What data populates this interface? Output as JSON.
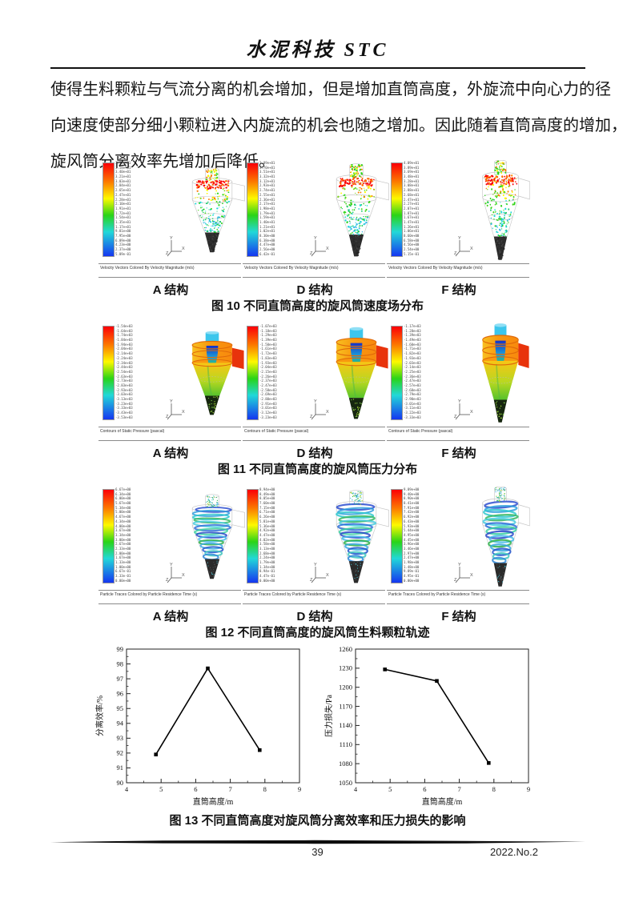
{
  "page": {
    "number": "39",
    "issue": "2022.No.2"
  },
  "header": {
    "title": "水泥科技 STC"
  },
  "body_lines": [
    "使得生料颗粒与气流分离的机会增加，但是增加直筒高度，外旋流中向心力的径",
    "向速度使部分细小颗粒进入内旋流的机会也随之增加。因此随着直筒高度的增加，",
    "旋风筒分离效率先增加后降低。"
  ],
  "triad": {
    "up": "Y",
    "right": "X",
    "depth": "Z"
  },
  "colormap": [
    "#fb0007",
    "#fc7a00",
    "#fdf900",
    "#2ad417",
    "#22d8d8",
    "#1536f0"
  ],
  "figures": [
    {
      "id": "fig10",
      "style": "velocity",
      "panel_caption": "Velocity Vectors Colored By Velocity Magnitude (m/s)",
      "caption": "图 10 不同直筒高度的旋风筒速度场分布",
      "panels": [
        {
          "label": "A 结构",
          "legend": [
            "3.77e+01",
            "3.58e+01",
            "3.40e+01",
            "3.21e+01",
            "3.03e+01",
            "2.84e+01",
            "2.65e+01",
            "2.47e+01",
            "2.28e+01",
            "2.10e+01",
            "1.91e+01",
            "1.72e+01",
            "1.54e+01",
            "1.35e+01",
            "1.17e+01",
            "9.81e+00",
            "7.95e+00",
            "6.09e+00",
            "4.23e+00",
            "2.37e+00",
            "5.09e-01"
          ]
        },
        {
          "label": "D 结构",
          "legend": [
            "3.89e+01",
            "3.70e+01",
            "3.51e+01",
            "3.32e+01",
            "3.12e+01",
            "2.93e+01",
            "2.74e+01",
            "2.55e+01",
            "2.36e+01",
            "2.17e+01",
            "1.98e+01",
            "1.79e+01",
            "1.59e+01",
            "1.40e+01",
            "1.21e+01",
            "1.02e+01",
            "8.30e+00",
            "6.38e+00",
            "4.47e+00",
            "2.56e+00",
            "6.42e-01"
          ]
        },
        {
          "label": "F 结构",
          "legend": [
            "4.09e+01",
            "3.89e+01",
            "3.69e+01",
            "3.48e+01",
            "3.28e+01",
            "3.08e+01",
            "2.88e+01",
            "2.68e+01",
            "2.47e+01",
            "2.27e+01",
            "2.07e+01",
            "1.87e+01",
            "1.67e+01",
            "1.47e+01",
            "1.26e+01",
            "1.06e+01",
            "8.60e+00",
            "6.58e+00",
            "4.56e+00",
            "2.54e+00",
            "5.15e-01"
          ]
        }
      ]
    },
    {
      "id": "fig11",
      "style": "pressure",
      "panel_caption": "Contours of Static Pressure (pascal)",
      "caption": "图 11 不同直筒高度的旋风筒压力分布",
      "panels": [
        {
          "label": "A 结构",
          "legend": [
            "-1.54e+03",
            "-1.64e+03",
            "-1.74e+03",
            "-1.84e+03",
            "-1.94e+03",
            "-2.04e+03",
            "-2.14e+03",
            "-2.24e+03",
            "-2.34e+03",
            "-2.44e+03",
            "-2.54e+03",
            "-2.63e+03",
            "-2.73e+03",
            "-2.83e+03",
            "-2.93e+03",
            "-3.03e+03",
            "-3.13e+03",
            "-3.23e+03",
            "-3.33e+03",
            "-3.43e+03",
            "-3.53e+03"
          ]
        },
        {
          "label": "D 结构",
          "legend": [
            "-1.07e+03",
            "-1.18e+03",
            "-1.29e+03",
            "-1.39e+03",
            "-1.50e+03",
            "-1.61e+03",
            "-1.72e+03",
            "-1.83e+03",
            "-1.93e+03",
            "-2.04e+03",
            "-2.15e+03",
            "-2.26e+03",
            "-2.37e+03",
            "-2.47e+03",
            "-2.58e+03",
            "-2.69e+03",
            "-2.80e+03",
            "-2.91e+03",
            "-3.01e+03",
            "-3.12e+03",
            "-3.23e+03"
          ]
        },
        {
          "label": "F 结构",
          "legend": [
            "-1.17e+03",
            "-1.28e+03",
            "-1.39e+03",
            "-1.49e+03",
            "-1.60e+03",
            "-1.71e+03",
            "-1.82e+03",
            "-1.93e+03",
            "-2.03e+03",
            "-2.14e+03",
            "-2.25e+03",
            "-2.36e+03",
            "-2.47e+03",
            "-2.57e+03",
            "-2.68e+03",
            "-2.79e+03",
            "-2.90e+03",
            "-3.01e+03",
            "-3.11e+03",
            "-3.22e+03",
            "-3.33e+03"
          ]
        }
      ]
    },
    {
      "id": "fig12",
      "style": "particles",
      "panel_caption": "Particle Traces Colored by Particle Residence Time (s)",
      "caption": "图 12 不同直筒高度的旋风筒生料颗粒轨迹",
      "panels": [
        {
          "label": "A 结构",
          "legend": [
            "6.67e+00",
            "6.34e+00",
            "6.00e+00",
            "5.67e+00",
            "5.34e+00",
            "5.00e+00",
            "4.67e+00",
            "4.34e+00",
            "4.00e+00",
            "3.67e+00",
            "3.34e+00",
            "3.00e+00",
            "2.67e+00",
            "2.33e+00",
            "2.00e+00",
            "1.67e+00",
            "1.33e+00",
            "1.00e+00",
            "6.67e-01",
            "3.33e-01",
            "0.00e+00"
          ]
        },
        {
          "label": "D 结构",
          "legend": [
            "8.94e+00",
            "8.49e+00",
            "8.05e+00",
            "7.60e+00",
            "7.15e+00",
            "6.71e+00",
            "6.26e+00",
            "5.81e+00",
            "5.36e+00",
            "4.92e+00",
            "4.47e+00",
            "4.02e+00",
            "3.58e+00",
            "3.13e+00",
            "2.68e+00",
            "2.24e+00",
            "1.79e+00",
            "1.34e+00",
            "8.94e-01",
            "4.47e-01",
            "0.00e+00"
          ]
        },
        {
          "label": "F 结构",
          "legend": [
            "9.89e+00",
            "9.40e+00",
            "8.90e+00",
            "8.41e+00",
            "7.91e+00",
            "7.42e+00",
            "6.92e+00",
            "6.43e+00",
            "5.93e+00",
            "5.44e+00",
            "4.95e+00",
            "4.45e+00",
            "3.96e+00",
            "3.46e+00",
            "2.97e+00",
            "2.47e+00",
            "1.98e+00",
            "1.48e+00",
            "9.89e-01",
            "4.95e-01",
            "0.00e+00"
          ]
        }
      ]
    }
  ],
  "figure13": {
    "caption": "图 13 不同直筒高度对旋风筒分离效率和压力损失的影响"
  },
  "chart_data": [
    {
      "type": "line",
      "xlabel": "直筒高度/m",
      "ylabel": "分离效率/%",
      "xlim": [
        4,
        9
      ],
      "ylim": [
        90,
        99
      ],
      "xticks": [
        4,
        5,
        6,
        7,
        8,
        9
      ],
      "yticks": [
        90,
        91,
        92,
        93,
        94,
        95,
        96,
        97,
        98,
        99
      ],
      "x": [
        4.85,
        6.35,
        7.85
      ],
      "y": [
        91.9,
        97.7,
        92.2
      ],
      "marker": "square",
      "line_color": "#000000",
      "grid": false,
      "legend": null
    },
    {
      "type": "line",
      "xlabel": "直筒高度/m",
      "ylabel": "压力损失/Pa",
      "xlim": [
        4,
        9
      ],
      "ylim": [
        1050,
        1260
      ],
      "xticks": [
        4,
        5,
        6,
        7,
        8,
        9
      ],
      "yticks": [
        1050,
        1080,
        1110,
        1140,
        1170,
        1200,
        1230,
        1260
      ],
      "x": [
        4.85,
        6.35,
        7.85
      ],
      "y": [
        1228,
        1210,
        1081
      ],
      "marker": "square",
      "line_color": "#000000",
      "grid": false,
      "legend": null
    }
  ]
}
